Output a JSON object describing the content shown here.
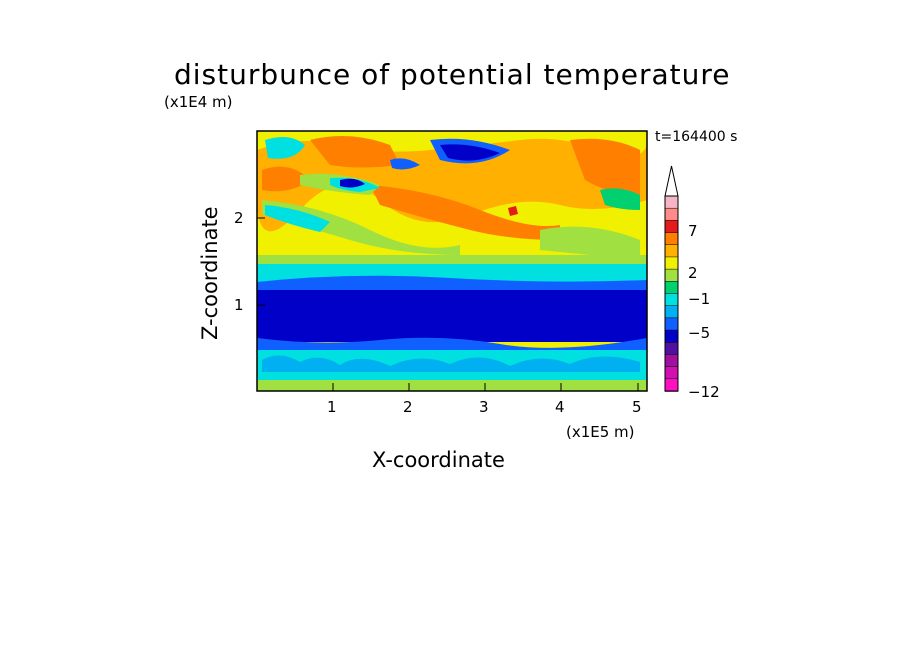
{
  "chart_data": {
    "type": "heatmap",
    "title": "disturbunce of potential temperature",
    "time_label": "t=164400 s",
    "xlabel": "X-coordinate",
    "ylabel": "Z-coordinate",
    "x_unit": "(x1E5 m)",
    "y_unit": "(x1E4 m)",
    "x_ticks": [
      "1",
      "2",
      "3",
      "4",
      "5"
    ],
    "y_ticks": [
      "1",
      "2"
    ],
    "xlim": [
      0,
      5.12
    ],
    "ylim": [
      0,
      3.0
    ],
    "colorbar": {
      "labels": [
        "7",
        "2",
        "-1",
        "-5",
        "-12"
      ],
      "colors": [
        "#f5b5c5",
        "#ff8a8a",
        "#e41a1c",
        "#ff7f00",
        "#ffb000",
        "#f0f000",
        "#a0e040",
        "#00d070",
        "#00e0e0",
        "#00b0f0",
        "#1060ff",
        "#0000c8",
        "#5010a0",
        "#a010a0",
        "#d010b0",
        "#ff10c0"
      ],
      "extend": "max"
    },
    "bands": [
      {
        "z0": 0.0,
        "z1": 0.05,
        "value": "green",
        "color": "#70d050"
      },
      {
        "z0": 0.05,
        "z1": 0.55,
        "value": "-3",
        "color": "#00e0e0"
      },
      {
        "z0": 0.55,
        "z1": 1.25,
        "value": "-6",
        "color": "#0000c8"
      },
      {
        "z0": 1.25,
        "z1": 1.4,
        "value": "-1",
        "color": "#00e0e0"
      },
      {
        "z0": 1.4,
        "z1": 1.7,
        "value": "1",
        "color": "#f0f000"
      },
      {
        "z0": 1.7,
        "z1": 2.4,
        "value": "3",
        "color": "#ff7f00"
      },
      {
        "z0": 2.4,
        "z1": 3.0,
        "value": "2",
        "color": "#ffb000"
      }
    ]
  }
}
